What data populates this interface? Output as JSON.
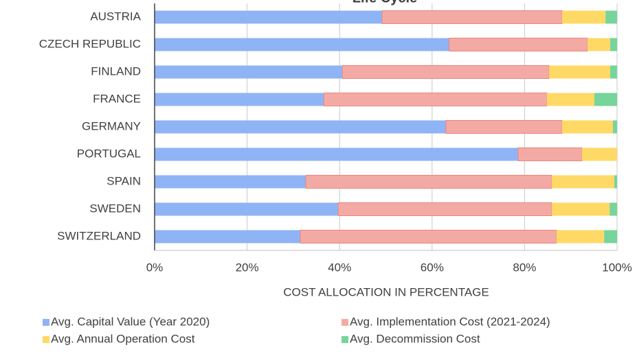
{
  "chart_data": {
    "type": "stacked-barh",
    "title": "Life Cycle",
    "categories": [
      "AUSTRIA",
      "CZECH REPUBLIC",
      "FINLAND",
      "FRANCE",
      "GERMANY",
      "PORTUGAL",
      "SPAIN",
      "SWEDEN",
      "SWITZERLAND"
    ],
    "series": [
      {
        "name": "Avg. Capital Value (Year 2020)",
        "color": "#8fb4f5",
        "values": [
          49.2,
          63.7,
          40.6,
          36.6,
          63.0,
          78.6,
          32.7,
          39.7,
          31.5
        ]
      },
      {
        "name": "Avg. Implementation Cost (2021-2024)",
        "color": "#f4aaa4",
        "values": [
          38.9,
          29.9,
          44.7,
          48.2,
          25.1,
          13.8,
          53.2,
          46.2,
          55.4
        ]
      },
      {
        "name": "Avg. Annual Operation Cost",
        "color": "#ffd966",
        "values": [
          9.4,
          4.9,
          13.2,
          10.3,
          11.0,
          7.6,
          13.5,
          12.5,
          10.3
        ]
      },
      {
        "name": "Avg. Decommission Cost",
        "color": "#77d49a",
        "values": [
          2.5,
          1.5,
          1.5,
          4.9,
          0.9,
          0,
          0.6,
          1.6,
          2.8
        ]
      }
    ],
    "x_label": "COST ALLOCATION IN PERCENTAGE",
    "xlim": [
      0,
      100
    ],
    "xticks": [
      {
        "value": 0,
        "label": "0%"
      },
      {
        "value": 20,
        "label": "20%"
      },
      {
        "value": 40,
        "label": "40%"
      },
      {
        "value": 60,
        "label": "60%"
      },
      {
        "value": 80,
        "label": "80%"
      },
      {
        "value": 100,
        "label": "100%"
      }
    ],
    "grid": true
  }
}
